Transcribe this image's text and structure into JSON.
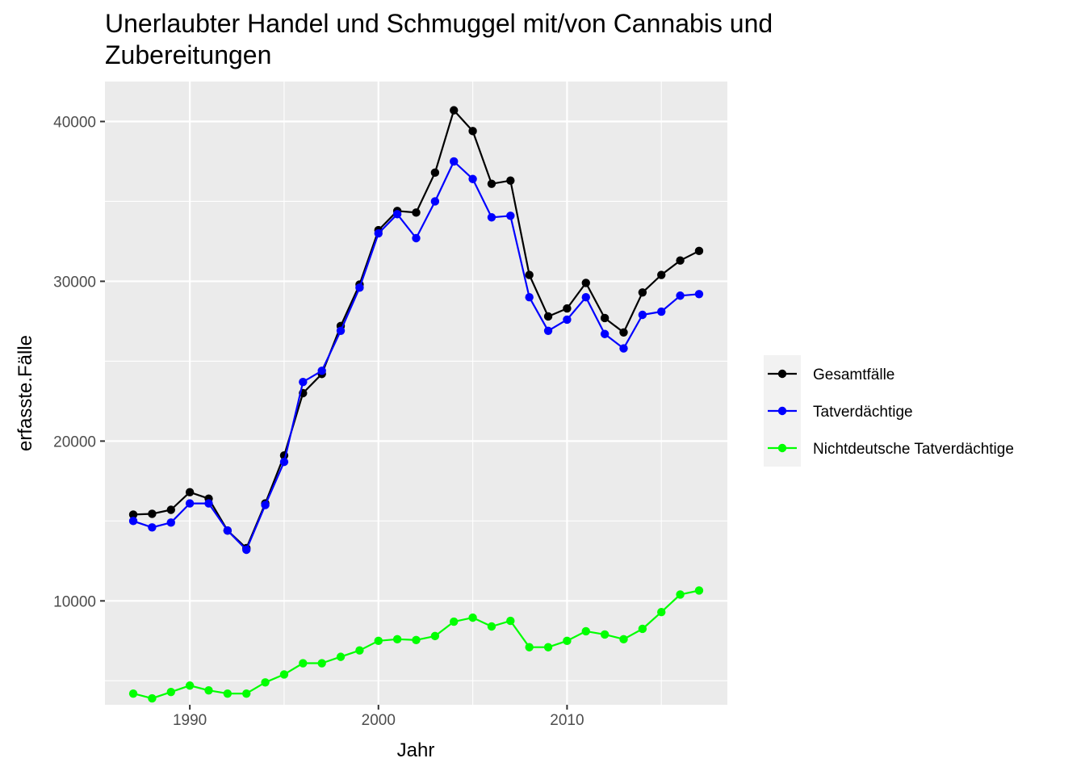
{
  "chart_data": {
    "type": "line",
    "title_lines": [
      "Unerlaubter Handel und Schmuggel mit/von Cannabis und",
      "Zubereitungen"
    ],
    "xlabel": "Jahr",
    "ylabel": "erfasste.Fälle",
    "xlim": [
      1985.5,
      2018.5
    ],
    "ylim": [
      3500,
      42500
    ],
    "x_ticks": [
      1990,
      2000,
      2010
    ],
    "x_tick_labels": [
      "1990",
      "2000",
      "2010"
    ],
    "y_ticks": [
      10000,
      20000,
      30000,
      40000
    ],
    "y_tick_labels": [
      "10000",
      "20000",
      "30000",
      "40000"
    ],
    "grid": true,
    "legend_position": "right",
    "x": [
      1987,
      1988,
      1989,
      1990,
      1991,
      1992,
      1993,
      1994,
      1995,
      1996,
      1997,
      1998,
      1999,
      2000,
      2001,
      2002,
      2003,
      2004,
      2005,
      2006,
      2007,
      2008,
      2009,
      2010,
      2011,
      2012,
      2013,
      2014,
      2015,
      2016,
      2017
    ],
    "series": [
      {
        "name": "Gesamtfälle",
        "color": "#000000",
        "values": [
          15400,
          15450,
          15700,
          16800,
          16400,
          14400,
          13300,
          16100,
          19100,
          23000,
          24200,
          27200,
          29800,
          33200,
          34400,
          34300,
          36800,
          40700,
          39400,
          36100,
          36300,
          30400,
          27800,
          28300,
          29900,
          27700,
          26800,
          29300,
          30400,
          31300,
          31900
        ]
      },
      {
        "name": "Tatverdächtige",
        "color": "#0000ff",
        "values": [
          15000,
          14600,
          14900,
          16100,
          16100,
          14400,
          13200,
          16000,
          18700,
          23700,
          24400,
          26900,
          29600,
          33000,
          34200,
          32700,
          35000,
          37500,
          36400,
          34000,
          34100,
          29000,
          26900,
          27600,
          29000,
          26700,
          25800,
          27900,
          28100,
          29100,
          29200
        ]
      },
      {
        "name": "Nichtdeutsche Tatverdächtige",
        "color": "#00ff00",
        "values": [
          4200,
          3900,
          4300,
          4700,
          4400,
          4200,
          4200,
          4900,
          5400,
          6100,
          6100,
          6500,
          6900,
          7500,
          7600,
          7550,
          7800,
          8700,
          8950,
          8400,
          8750,
          7100,
          7100,
          7500,
          8100,
          7900,
          7600,
          8250,
          9300,
          10400,
          10650
        ]
      }
    ]
  }
}
